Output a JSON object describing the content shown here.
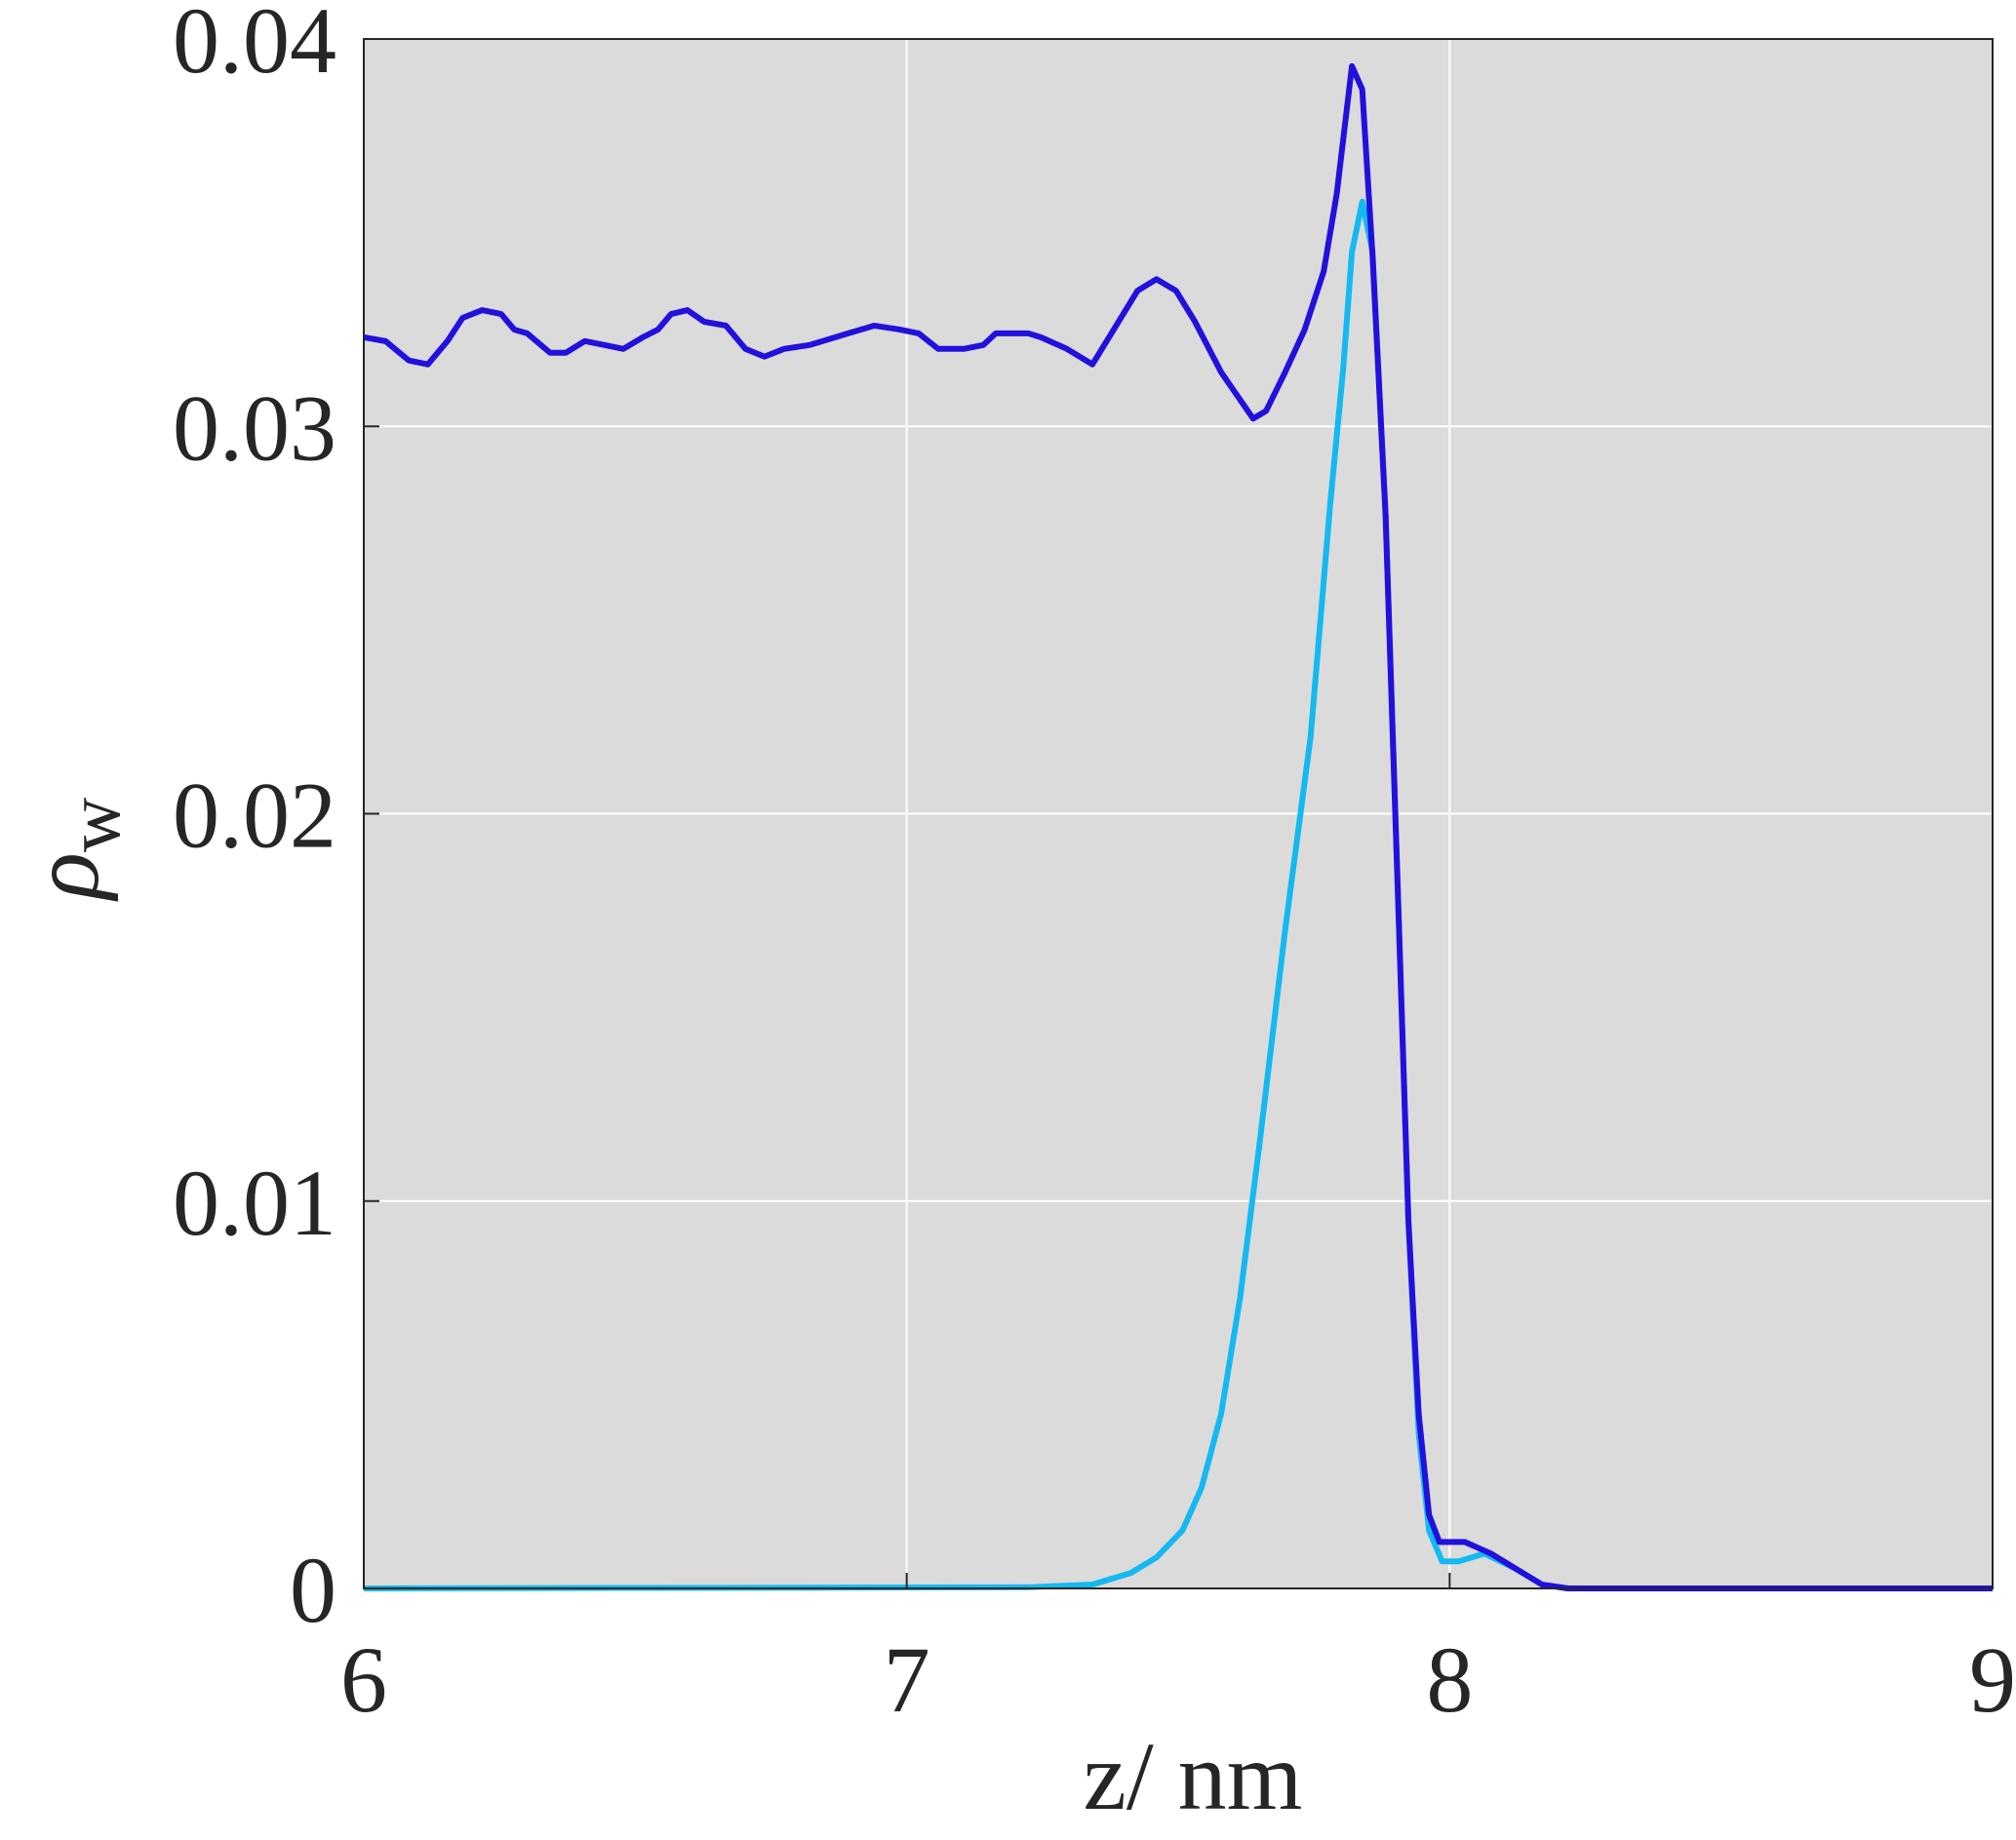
{
  "chart_data": {
    "type": "line",
    "xlabel": "z/ nm",
    "ylabel_symbol": "ρ",
    "ylabel_subscript": "w",
    "xlim": [
      6,
      9
    ],
    "xticks": [
      6,
      7,
      8,
      9
    ],
    "ylim": [
      0,
      0.04
    ],
    "yticks": [
      0,
      0.01,
      0.02,
      0.03,
      0.04
    ],
    "grid": true,
    "series": [
      {
        "color": "#2210dc",
        "x": [
          6.0,
          6.04,
          6.083,
          6.118,
          6.154,
          6.182,
          6.218,
          6.253,
          6.277,
          6.301,
          6.343,
          6.372,
          6.407,
          6.443,
          6.478,
          6.514,
          6.542,
          6.566,
          6.596,
          6.627,
          6.667,
          6.703,
          6.738,
          6.774,
          6.821,
          6.892,
          6.94,
          6.987,
          7.022,
          7.058,
          7.105,
          7.141,
          7.164,
          7.224,
          7.247,
          7.295,
          7.342,
          7.377,
          7.425,
          7.46,
          7.496,
          7.531,
          7.579,
          7.638,
          7.662,
          7.697,
          7.733,
          7.768,
          7.792,
          7.82,
          7.839,
          7.858,
          7.882,
          7.905,
          7.924,
          7.943,
          7.962,
          7.981,
          8.028,
          8.076,
          8.123,
          8.17,
          8.218,
          9.0
        ],
        "values": [
          0.0323,
          0.0322,
          0.0317,
          0.0316,
          0.0322,
          0.0328,
          0.033,
          0.0329,
          0.0325,
          0.0324,
          0.0319,
          0.0319,
          0.0322,
          0.0321,
          0.032,
          0.0323,
          0.0325,
          0.0329,
          0.033,
          0.0327,
          0.0326,
          0.032,
          0.0318,
          0.032,
          0.0321,
          0.0324,
          0.0326,
          0.0325,
          0.0324,
          0.032,
          0.032,
          0.0321,
          0.0324,
          0.0324,
          0.0323,
          0.032,
          0.0316,
          0.0324,
          0.0335,
          0.0338,
          0.0335,
          0.0327,
          0.0314,
          0.0302,
          0.0304,
          0.0314,
          0.0325,
          0.034,
          0.036,
          0.0393,
          0.0387,
          0.0344,
          0.0277,
          0.0178,
          0.0095,
          0.0045,
          0.0019,
          0.0012,
          0.0012,
          0.0009,
          0.0005,
          0.0001,
          0,
          0
        ]
      },
      {
        "color": "#14b9f0",
        "x": [
          6.0,
          7.224,
          7.342,
          7.413,
          7.46,
          7.508,
          7.543,
          7.579,
          7.614,
          7.65,
          7.697,
          7.744,
          7.78,
          7.804,
          7.82,
          7.839,
          7.858,
          7.882,
          7.905,
          7.924,
          7.943,
          7.962,
          7.986,
          8.017,
          8.064,
          8.123,
          8.17,
          8.218,
          9.0
        ],
        "values": [
          0,
          3e-05,
          0.0001,
          0.0004,
          0.0008,
          0.0015,
          0.0026,
          0.0045,
          0.0075,
          0.0115,
          0.017,
          0.022,
          0.028,
          0.0315,
          0.0345,
          0.0358,
          0.0345,
          0.0277,
          0.0178,
          0.0095,
          0.004,
          0.0015,
          0.0007,
          0.0007,
          0.0009,
          0.0005,
          0.0001,
          0,
          0
        ]
      }
    ]
  }
}
